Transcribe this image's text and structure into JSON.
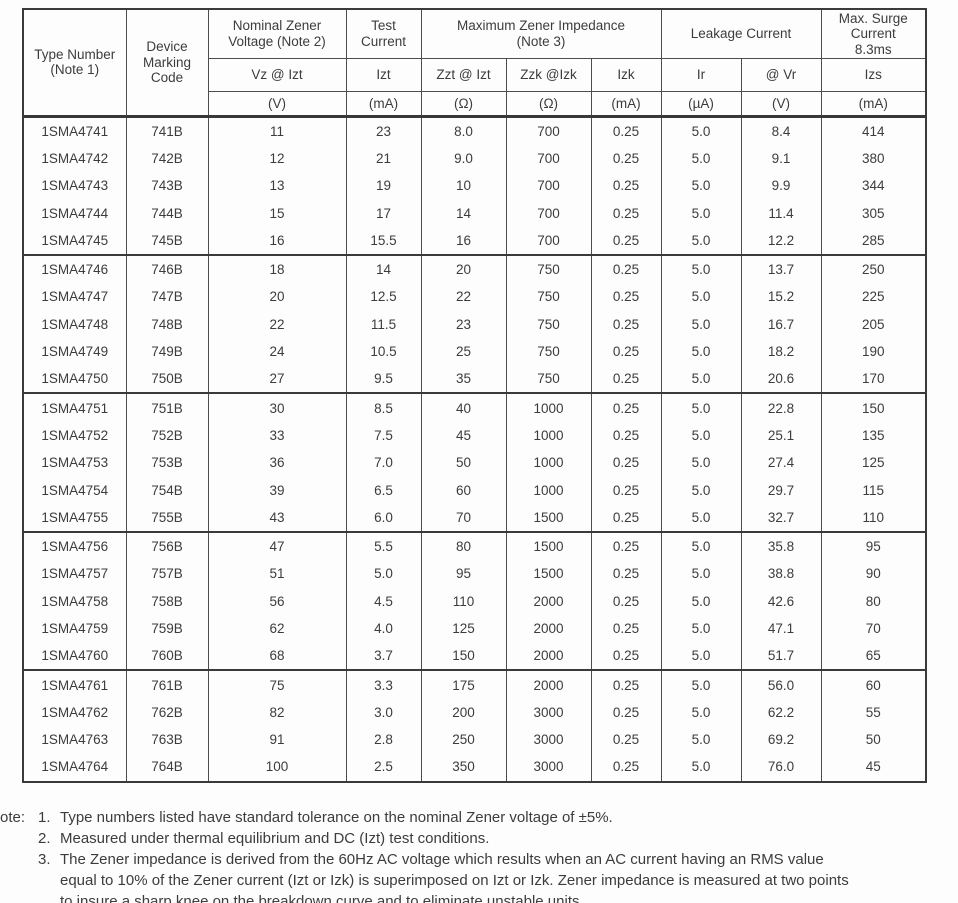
{
  "table": {
    "header": {
      "type_number_lines": [
        "Type Number",
        "(Note 1)"
      ],
      "device_marking_lines": [
        "Device",
        "Marking",
        "Code"
      ],
      "nominal_zener_lines": [
        "Nominal Zener",
        "Voltage (Note 2)"
      ],
      "test_current_lines": [
        "Test",
        "Current"
      ],
      "impedance_lines": [
        "Maximum Zener Impedance",
        "(Note 3)"
      ],
      "leakage_line": "Leakage Current",
      "surge_lines": [
        "Max. Surge",
        "Current",
        "8.3ms"
      ],
      "symbols": [
        "Vz @ Izt",
        "Izt",
        "Zzt @ Izt",
        "Zzk @Izk",
        "Izk",
        "Ir",
        "@ Vr",
        "Izs"
      ],
      "units": [
        "(V)",
        "(mA)",
        "(Ω)",
        "(Ω)",
        "(mA)",
        "(µA)",
        "(V)",
        "(mA)"
      ]
    },
    "row_groups": [
      [
        [
          "1SMA4741",
          "741B",
          "11",
          "23",
          "8.0",
          "700",
          "0.25",
          "5.0",
          "8.4",
          "414"
        ],
        [
          "1SMA4742",
          "742B",
          "12",
          "21",
          "9.0",
          "700",
          "0.25",
          "5.0",
          "9.1",
          "380"
        ],
        [
          "1SMA4743",
          "743B",
          "13",
          "19",
          "10",
          "700",
          "0.25",
          "5.0",
          "9.9",
          "344"
        ],
        [
          "1SMA4744",
          "744B",
          "15",
          "17",
          "14",
          "700",
          "0.25",
          "5.0",
          "11.4",
          "305"
        ],
        [
          "1SMA4745",
          "745B",
          "16",
          "15.5",
          "16",
          "700",
          "0.25",
          "5.0",
          "12.2",
          "285"
        ]
      ],
      [
        [
          "1SMA4746",
          "746B",
          "18",
          "14",
          "20",
          "750",
          "0.25",
          "5.0",
          "13.7",
          "250"
        ],
        [
          "1SMA4747",
          "747B",
          "20",
          "12.5",
          "22",
          "750",
          "0.25",
          "5.0",
          "15.2",
          "225"
        ],
        [
          "1SMA4748",
          "748B",
          "22",
          "11.5",
          "23",
          "750",
          "0.25",
          "5.0",
          "16.7",
          "205"
        ],
        [
          "1SMA4749",
          "749B",
          "24",
          "10.5",
          "25",
          "750",
          "0.25",
          "5.0",
          "18.2",
          "190"
        ],
        [
          "1SMA4750",
          "750B",
          "27",
          "9.5",
          "35",
          "750",
          "0.25",
          "5.0",
          "20.6",
          "170"
        ]
      ],
      [
        [
          "1SMA4751",
          "751B",
          "30",
          "8.5",
          "40",
          "1000",
          "0.25",
          "5.0",
          "22.8",
          "150"
        ],
        [
          "1SMA4752",
          "752B",
          "33",
          "7.5",
          "45",
          "1000",
          "0.25",
          "5.0",
          "25.1",
          "135"
        ],
        [
          "1SMA4753",
          "753B",
          "36",
          "7.0",
          "50",
          "1000",
          "0.25",
          "5.0",
          "27.4",
          "125"
        ],
        [
          "1SMA4754",
          "754B",
          "39",
          "6.5",
          "60",
          "1000",
          "0.25",
          "5.0",
          "29.7",
          "115"
        ],
        [
          "1SMA4755",
          "755B",
          "43",
          "6.0",
          "70",
          "1500",
          "0.25",
          "5.0",
          "32.7",
          "110"
        ]
      ],
      [
        [
          "1SMA4756",
          "756B",
          "47",
          "5.5",
          "80",
          "1500",
          "0.25",
          "5.0",
          "35.8",
          "95"
        ],
        [
          "1SMA4757",
          "757B",
          "51",
          "5.0",
          "95",
          "1500",
          "0.25",
          "5.0",
          "38.8",
          "90"
        ],
        [
          "1SMA4758",
          "758B",
          "56",
          "4.5",
          "110",
          "2000",
          "0.25",
          "5.0",
          "42.6",
          "80"
        ],
        [
          "1SMA4759",
          "759B",
          "62",
          "4.0",
          "125",
          "2000",
          "0.25",
          "5.0",
          "47.1",
          "70"
        ],
        [
          "1SMA4760",
          "760B",
          "68",
          "3.7",
          "150",
          "2000",
          "0.25",
          "5.0",
          "51.7",
          "65"
        ]
      ],
      [
        [
          "1SMA4761",
          "761B",
          "75",
          "3.3",
          "175",
          "2000",
          "0.25",
          "5.0",
          "56.0",
          "60"
        ],
        [
          "1SMA4762",
          "762B",
          "82",
          "3.0",
          "200",
          "3000",
          "0.25",
          "5.0",
          "62.2",
          "55"
        ],
        [
          "1SMA4763",
          "763B",
          "91",
          "2.8",
          "250",
          "3000",
          "0.25",
          "5.0",
          "69.2",
          "50"
        ],
        [
          "1SMA4764",
          "764B",
          "100",
          "2.5",
          "350",
          "3000",
          "0.25",
          "5.0",
          "76.0",
          "45"
        ]
      ]
    ]
  },
  "notes": {
    "label": "ote:",
    "items": [
      {
        "num": "1.",
        "lines": [
          "Type numbers listed have standard tolerance on the nominal Zener voltage of ±5%."
        ]
      },
      {
        "num": "2.",
        "lines": [
          "Measured under thermal equilibrium and DC (Izt) test conditions."
        ]
      },
      {
        "num": "3.",
        "lines": [
          "The Zener impedance is derived from the 60Hz AC voltage which results when an AC current having an RMS value",
          "equal to 10% of the Zener current (Izt or Izk) is superimposed on Izt or Izk. Zener impedance is measured at two points",
          "to insure a sharp knee on the breakdown curve and to eliminate unstable units."
        ]
      }
    ]
  }
}
